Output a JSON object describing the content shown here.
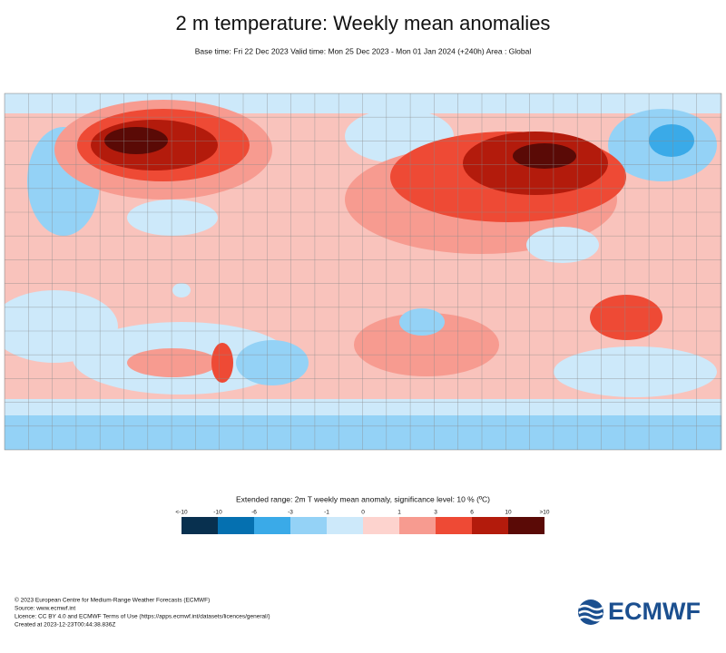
{
  "header": {
    "title": "2 m temperature: Weekly mean anomalies",
    "subtitle": "Base time: Fri 22 Dec 2023 Valid time: Mon 25 Dec 2023 - Mon 01 Jan 2024 (+240h) Area : Global"
  },
  "legend": {
    "title": "Extended range: 2m T weekly mean anomaly, significance level: 10 % (ºC)",
    "labels": [
      "<-10",
      "-10",
      "-6",
      "-3",
      "-1",
      "0",
      "1",
      "3",
      "6",
      "10",
      ">10"
    ],
    "colors": [
      "#08304f",
      "#0570b0",
      "#3aaae8",
      "#94d2f6",
      "#cde9fa",
      "#fdd3ce",
      "#f79b90",
      "#ee4a35",
      "#b31b0c",
      "#5a0a06"
    ]
  },
  "footer": {
    "lines": [
      "© 2023 European Centre for Medium-Range Weather Forecasts (ECMWF)",
      "Source: www.ecmwf.int",
      "Licence: CC BY 4.0 and ECMWF Terms of Use (https://apps.ecmwf.int/datasets/licences/general/)",
      "Created at 2023-12-23T00:44:38.836Z"
    ]
  },
  "logo": {
    "text": "ECMWF"
  }
}
